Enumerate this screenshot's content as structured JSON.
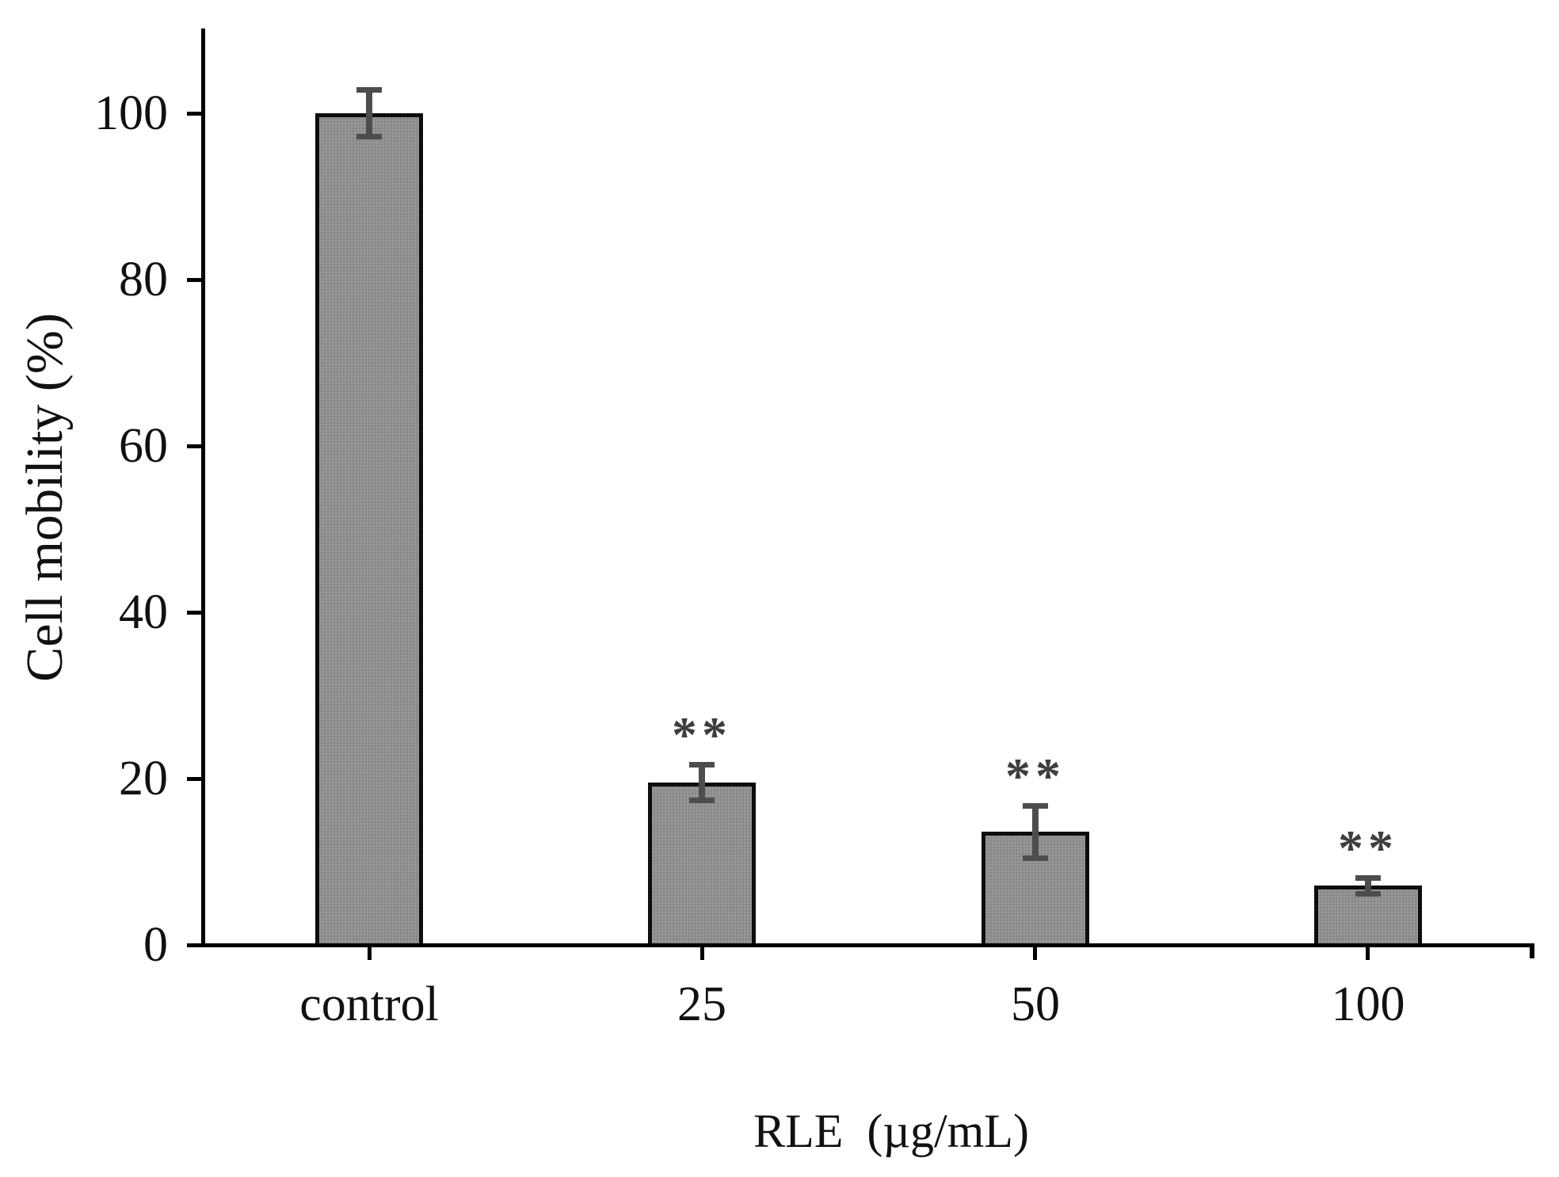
{
  "chart_data": {
    "type": "bar",
    "title": "",
    "categories": [
      "control",
      "25",
      "50",
      "100"
    ],
    "values": [
      100,
      19.5,
      13.6,
      7.1
    ],
    "errors": [
      2.8,
      2.1,
      3.1,
      0.9
    ],
    "significance": [
      "",
      "**",
      "**",
      "**"
    ],
    "xlabel": "RLE  (µg/mL)",
    "ylabel": "Cell mobility (%)",
    "yticks": [
      0,
      20,
      40,
      60,
      80,
      100
    ],
    "ylim": [
      0,
      110
    ],
    "grid": false,
    "legend": "none",
    "colors": {
      "bar_fill": "#8f8f8f",
      "bar_border": "#0d0d0d",
      "error_bar": "#4d4d4d",
      "significance": "#3e3e3e",
      "axis": "#000000",
      "background": "#ffffff"
    }
  }
}
